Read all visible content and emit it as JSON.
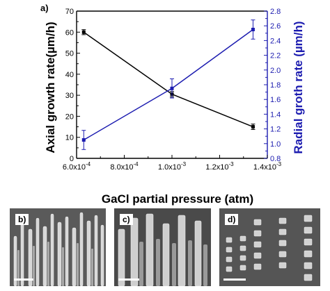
{
  "chart_data": {
    "type": "line",
    "panel_label": "a)",
    "xlabel": "GaCl partial pressure (atm)",
    "x_tick_labels": [
      {
        "value": 0.0006,
        "mantissa": "6.0x10",
        "exp": "-4"
      },
      {
        "value": 0.0008,
        "mantissa": "8.0x10",
        "exp": "-4"
      },
      {
        "value": 0.001,
        "mantissa": "1.0x10",
        "exp": "-3"
      },
      {
        "value": 0.0012,
        "mantissa": "1.2x10",
        "exp": "-3"
      },
      {
        "value": 0.0014,
        "mantissa": "1.4x10",
        "exp": "-3"
      }
    ],
    "xlim": [
      0.0006,
      0.0014
    ],
    "ylabel_left": "Axial growth rate(µm/h)",
    "ylim_left": [
      0,
      70
    ],
    "yticks_left": [
      "0",
      "10",
      "20",
      "30",
      "40",
      "50",
      "60",
      "70"
    ],
    "ylabel_right": "Radial groth rate (µm/h)",
    "ylim_right": [
      0.8,
      2.8
    ],
    "yticks_right": [
      "0.8",
      "1.0",
      "1.2",
      "1.4",
      "1.6",
      "1.8",
      "2.0",
      "2.2",
      "2.4",
      "2.6",
      "2.8"
    ],
    "grid": false,
    "series": [
      {
        "axis": "left",
        "color": "#000000",
        "points": [
          {
            "x": 0.00063,
            "y": 60,
            "err": 1.2
          },
          {
            "x": 0.001,
            "y": 30.5,
            "err": 1.3
          },
          {
            "x": 0.00134,
            "y": 15,
            "err": 1.3
          }
        ]
      },
      {
        "axis": "right",
        "color": "#1c1cb0",
        "points": [
          {
            "x": 0.00063,
            "y": 1.05,
            "err": 0.13
          },
          {
            "x": 0.001,
            "y": 1.75,
            "err": 0.13
          },
          {
            "x": 0.00134,
            "y": 2.55,
            "err": 0.13
          }
        ]
      }
    ]
  },
  "images": [
    {
      "label": "b)",
      "description_icon": "sem-nanowire-tall-icon"
    },
    {
      "label": "c)",
      "description_icon": "sem-nanowire-pillars-icon"
    },
    {
      "label": "d)",
      "description_icon": "sem-nanowire-short-icon"
    }
  ]
}
